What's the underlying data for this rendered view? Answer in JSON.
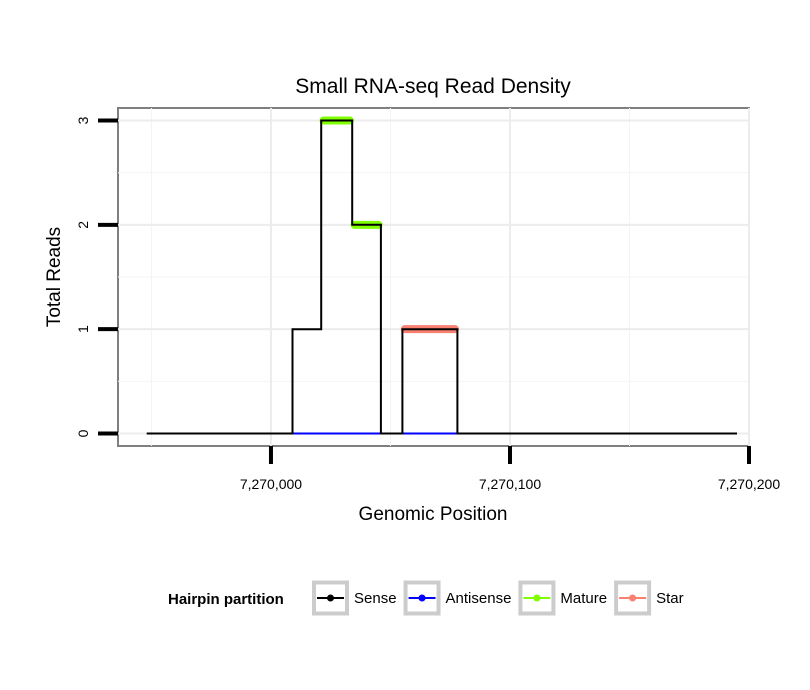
{
  "chart_data": {
    "type": "line",
    "title": "Small RNA-seq Read Density",
    "xlabel": "Genomic Position",
    "ylabel": "Total Reads",
    "xlim": [
      7269936,
      7270200
    ],
    "ylim": [
      -0.12,
      3.12
    ],
    "x_ticks": [
      {
        "value": 7270000,
        "label": "7,270,000"
      },
      {
        "value": 7270100,
        "label": "7,270,100"
      },
      {
        "value": 7270200,
        "label": "7,270,200"
      }
    ],
    "y_ticks": [
      {
        "value": 0,
        "label": "0"
      },
      {
        "value": 1,
        "label": "1"
      },
      {
        "value": 2,
        "label": "2"
      },
      {
        "value": 3,
        "label": "3"
      }
    ],
    "grid": true,
    "legend": {
      "title": "Hairpin partition",
      "position": "bottom",
      "entries": [
        {
          "name": "Sense",
          "color": "#000000"
        },
        {
          "name": "Antisense",
          "color": "#0000ff"
        },
        {
          "name": "Mature",
          "color": "#7fff00"
        },
        {
          "name": "Star",
          "color": "#fa8072"
        }
      ]
    },
    "series": [
      {
        "name": "Sense",
        "color": "#000000",
        "step_points": [
          [
            7269948,
            0
          ],
          [
            7270009,
            0
          ],
          [
            7270009,
            1
          ],
          [
            7270021,
            1
          ],
          [
            7270021,
            3
          ],
          [
            7270034,
            3
          ],
          [
            7270034,
            2
          ],
          [
            7270046,
            2
          ],
          [
            7270046,
            0
          ],
          [
            7270055,
            0
          ],
          [
            7270055,
            1
          ],
          [
            7270078,
            1
          ],
          [
            7270078,
            0
          ],
          [
            7270195,
            0
          ]
        ]
      },
      {
        "name": "Antisense",
        "color": "#0000ff",
        "segments": [
          {
            "x0": 7270009,
            "x1": 7270078,
            "y": 0
          }
        ]
      },
      {
        "name": "Mature",
        "color": "#7fff00",
        "segments": [
          {
            "x0": 7270022,
            "x1": 7270033,
            "y": 3
          },
          {
            "x0": 7270035,
            "x1": 7270045,
            "y": 2
          }
        ]
      },
      {
        "name": "Star",
        "color": "#fa8072",
        "segments": [
          {
            "x0": 7270056,
            "x1": 7270077,
            "y": 1
          }
        ]
      }
    ]
  }
}
